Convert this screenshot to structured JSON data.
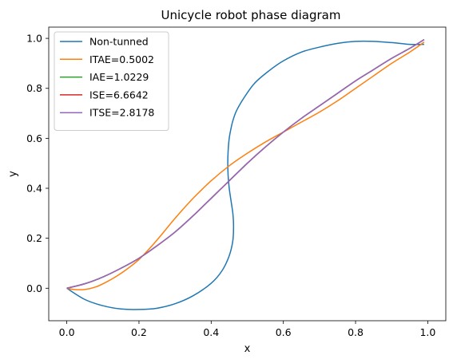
{
  "chart_data": {
    "type": "line",
    "title": "Unicycle robot phase diagram",
    "xlabel": "x",
    "ylabel": "y",
    "xlim": [
      -0.05,
      1.05
    ],
    "ylim": [
      -0.13,
      1.045
    ],
    "xticks": [
      0.0,
      0.2,
      0.4,
      0.6,
      0.8,
      1.0
    ],
    "yticks": [
      0.0,
      0.2,
      0.4,
      0.6,
      0.8,
      1.0
    ],
    "xtick_labels": [
      "0.0",
      "0.2",
      "0.4",
      "0.6",
      "0.8",
      "1.0"
    ],
    "ytick_labels": [
      "0.0",
      "0.2",
      "0.4",
      "0.6",
      "0.8",
      "1.0"
    ],
    "grid": false,
    "legend_position": "top-left",
    "series": [
      {
        "name": "Non-tunned",
        "color": "#1f77b4",
        "x": [
          0.0,
          0.05,
          0.1,
          0.15,
          0.2,
          0.25,
          0.3,
          0.35,
          0.4,
          0.43,
          0.45,
          0.46,
          0.462,
          0.46,
          0.455,
          0.45,
          0.447,
          0.446,
          0.447,
          0.45,
          0.455,
          0.46,
          0.47,
          0.49,
          0.52,
          0.56,
          0.6,
          0.65,
          0.7,
          0.75,
          0.8,
          0.85,
          0.9,
          0.95,
          0.99
        ],
        "y": [
          0.0,
          -0.045,
          -0.07,
          -0.083,
          -0.085,
          -0.08,
          -0.062,
          -0.03,
          0.02,
          0.07,
          0.13,
          0.19,
          0.25,
          0.3,
          0.35,
          0.4,
          0.45,
          0.5,
          0.55,
          0.6,
          0.64,
          0.67,
          0.71,
          0.76,
          0.82,
          0.87,
          0.91,
          0.945,
          0.965,
          0.98,
          0.988,
          0.988,
          0.983,
          0.976,
          0.976
        ]
      },
      {
        "name": "ITAE=0.5002",
        "color": "#ff7f0e",
        "x": [
          0.0,
          0.02,
          0.05,
          0.08,
          0.11,
          0.14,
          0.17,
          0.2,
          0.23,
          0.26,
          0.3,
          0.35,
          0.4,
          0.45,
          0.5,
          0.55,
          0.6,
          0.65,
          0.7,
          0.75,
          0.8,
          0.85,
          0.9,
          0.95,
          0.99
        ],
        "y": [
          0.0,
          -0.005,
          -0.005,
          0.005,
          0.025,
          0.05,
          0.08,
          0.115,
          0.16,
          0.21,
          0.28,
          0.36,
          0.43,
          0.49,
          0.54,
          0.585,
          0.625,
          0.665,
          0.705,
          0.75,
          0.8,
          0.85,
          0.9,
          0.945,
          0.985
        ]
      },
      {
        "name": "IAE=1.0229",
        "color": "#2ca02c",
        "x": [
          0.0,
          0.05,
          0.1,
          0.15,
          0.2,
          0.25,
          0.3,
          0.35,
          0.4,
          0.45,
          0.5,
          0.55,
          0.6,
          0.65,
          0.7,
          0.75,
          0.8,
          0.85,
          0.9,
          0.95,
          0.99
        ],
        "y": [
          0.0,
          0.018,
          0.045,
          0.08,
          0.12,
          0.17,
          0.225,
          0.29,
          0.36,
          0.43,
          0.5,
          0.565,
          0.625,
          0.68,
          0.73,
          0.78,
          0.83,
          0.875,
          0.92,
          0.96,
          0.995
        ]
      },
      {
        "name": "ISE=6.6642",
        "color": "#d62728",
        "x": [
          0.0,
          0.05,
          0.1,
          0.15,
          0.2,
          0.25,
          0.3,
          0.35,
          0.4,
          0.45,
          0.5,
          0.55,
          0.6,
          0.65,
          0.7,
          0.75,
          0.8,
          0.85,
          0.9,
          0.95,
          0.99
        ],
        "y": [
          0.0,
          0.018,
          0.045,
          0.08,
          0.12,
          0.17,
          0.225,
          0.29,
          0.36,
          0.43,
          0.5,
          0.565,
          0.625,
          0.68,
          0.73,
          0.78,
          0.83,
          0.875,
          0.92,
          0.96,
          0.995
        ]
      },
      {
        "name": "ITSE=2.8178",
        "color": "#9467bd",
        "x": [
          0.0,
          0.05,
          0.1,
          0.15,
          0.2,
          0.25,
          0.3,
          0.35,
          0.4,
          0.45,
          0.5,
          0.55,
          0.6,
          0.65,
          0.7,
          0.75,
          0.8,
          0.85,
          0.9,
          0.95,
          0.99
        ],
        "y": [
          0.0,
          0.018,
          0.045,
          0.08,
          0.12,
          0.17,
          0.225,
          0.29,
          0.36,
          0.43,
          0.5,
          0.565,
          0.625,
          0.68,
          0.73,
          0.78,
          0.83,
          0.875,
          0.92,
          0.96,
          0.995
        ]
      }
    ]
  }
}
